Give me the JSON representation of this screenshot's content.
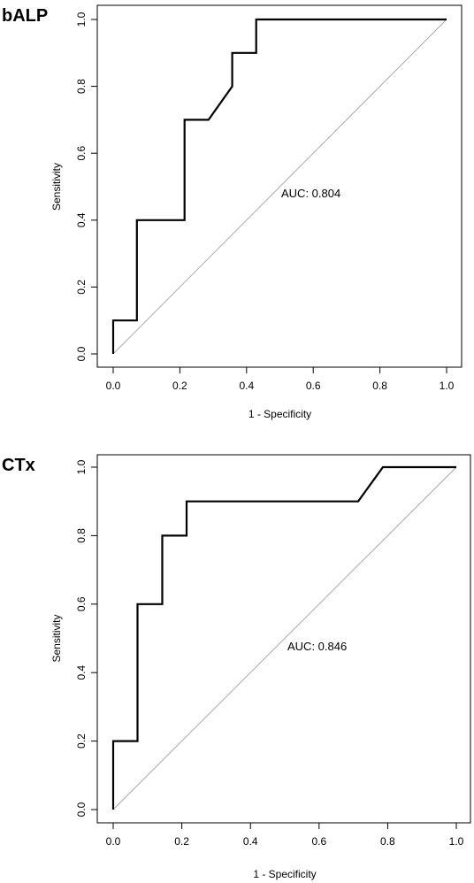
{
  "chart_data": [
    {
      "type": "line",
      "panel_label": "bALP",
      "xlabel": "1 - Specificity",
      "ylabel": "Sensitivity",
      "xlim": [
        0,
        1
      ],
      "ylim": [
        0,
        1
      ],
      "x_ticks": [
        "0.0",
        "0.2",
        "0.4",
        "0.6",
        "0.8",
        "1.0"
      ],
      "y_ticks": [
        "0.0",
        "0.2",
        "0.4",
        "0.6",
        "0.8",
        "1.0"
      ],
      "annotation": "AUC: 0.804",
      "grid": false,
      "diagonal_reference": true,
      "series": [
        {
          "points": [
            [
              0.0,
              0.0
            ],
            [
              0.0,
              0.1
            ],
            [
              0.071,
              0.1
            ],
            [
              0.071,
              0.4
            ],
            [
              0.214,
              0.4
            ],
            [
              0.214,
              0.7
            ],
            [
              0.286,
              0.7
            ],
            [
              0.357,
              0.8
            ],
            [
              0.357,
              0.9
            ],
            [
              0.429,
              0.9
            ],
            [
              0.429,
              1.0
            ],
            [
              1.0,
              1.0
            ]
          ]
        }
      ]
    },
    {
      "type": "line",
      "panel_label": "CTx",
      "xlabel": "1 - Specificity",
      "ylabel": "Sensitivity",
      "xlim": [
        0,
        1
      ],
      "ylim": [
        0,
        1
      ],
      "x_ticks": [
        "0.0",
        "0.2",
        "0.4",
        "0.6",
        "0.8",
        "1.0"
      ],
      "y_ticks": [
        "0.0",
        "0.2",
        "0.4",
        "0.6",
        "0.8",
        "1.0"
      ],
      "annotation": "AUC: 0.846",
      "grid": false,
      "diagonal_reference": true,
      "series": [
        {
          "points": [
            [
              0.0,
              0.0
            ],
            [
              0.0,
              0.2
            ],
            [
              0.071,
              0.2
            ],
            [
              0.071,
              0.6
            ],
            [
              0.143,
              0.6
            ],
            [
              0.143,
              0.8
            ],
            [
              0.214,
              0.8
            ],
            [
              0.214,
              0.9
            ],
            [
              0.714,
              0.9
            ],
            [
              0.786,
              1.0
            ],
            [
              1.0,
              1.0
            ]
          ]
        }
      ]
    }
  ]
}
